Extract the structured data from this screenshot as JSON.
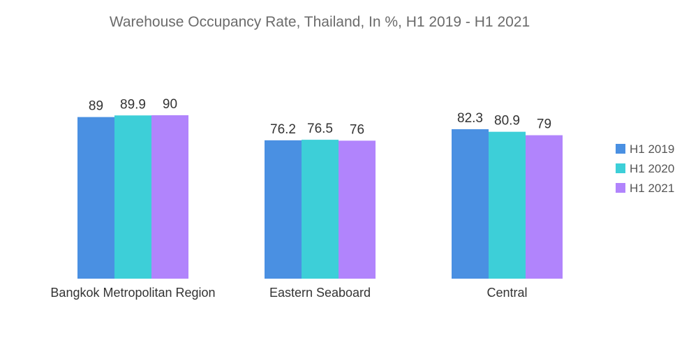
{
  "chart_data": {
    "type": "bar",
    "title": "Warehouse Occupancy Rate, Thailand, In %, H1 2019 - H1 2021",
    "xlabel": "",
    "ylabel": "",
    "ylim": [
      0,
      90
    ],
    "grid": false,
    "legend_position": "right",
    "categories": [
      "Bangkok Metropolitan Region",
      "Eastern Seaboard",
      "Central"
    ],
    "series": [
      {
        "name": "H1 2019",
        "values": [
          89,
          76.2,
          82.3
        ],
        "color": "#4a90e2"
      },
      {
        "name": "H1 2020",
        "values": [
          89.9,
          76.5,
          80.9
        ],
        "color": "#3dcfd8"
      },
      {
        "name": "H1 2021",
        "values": [
          90,
          76,
          79
        ],
        "color": "#b184fc"
      }
    ]
  }
}
